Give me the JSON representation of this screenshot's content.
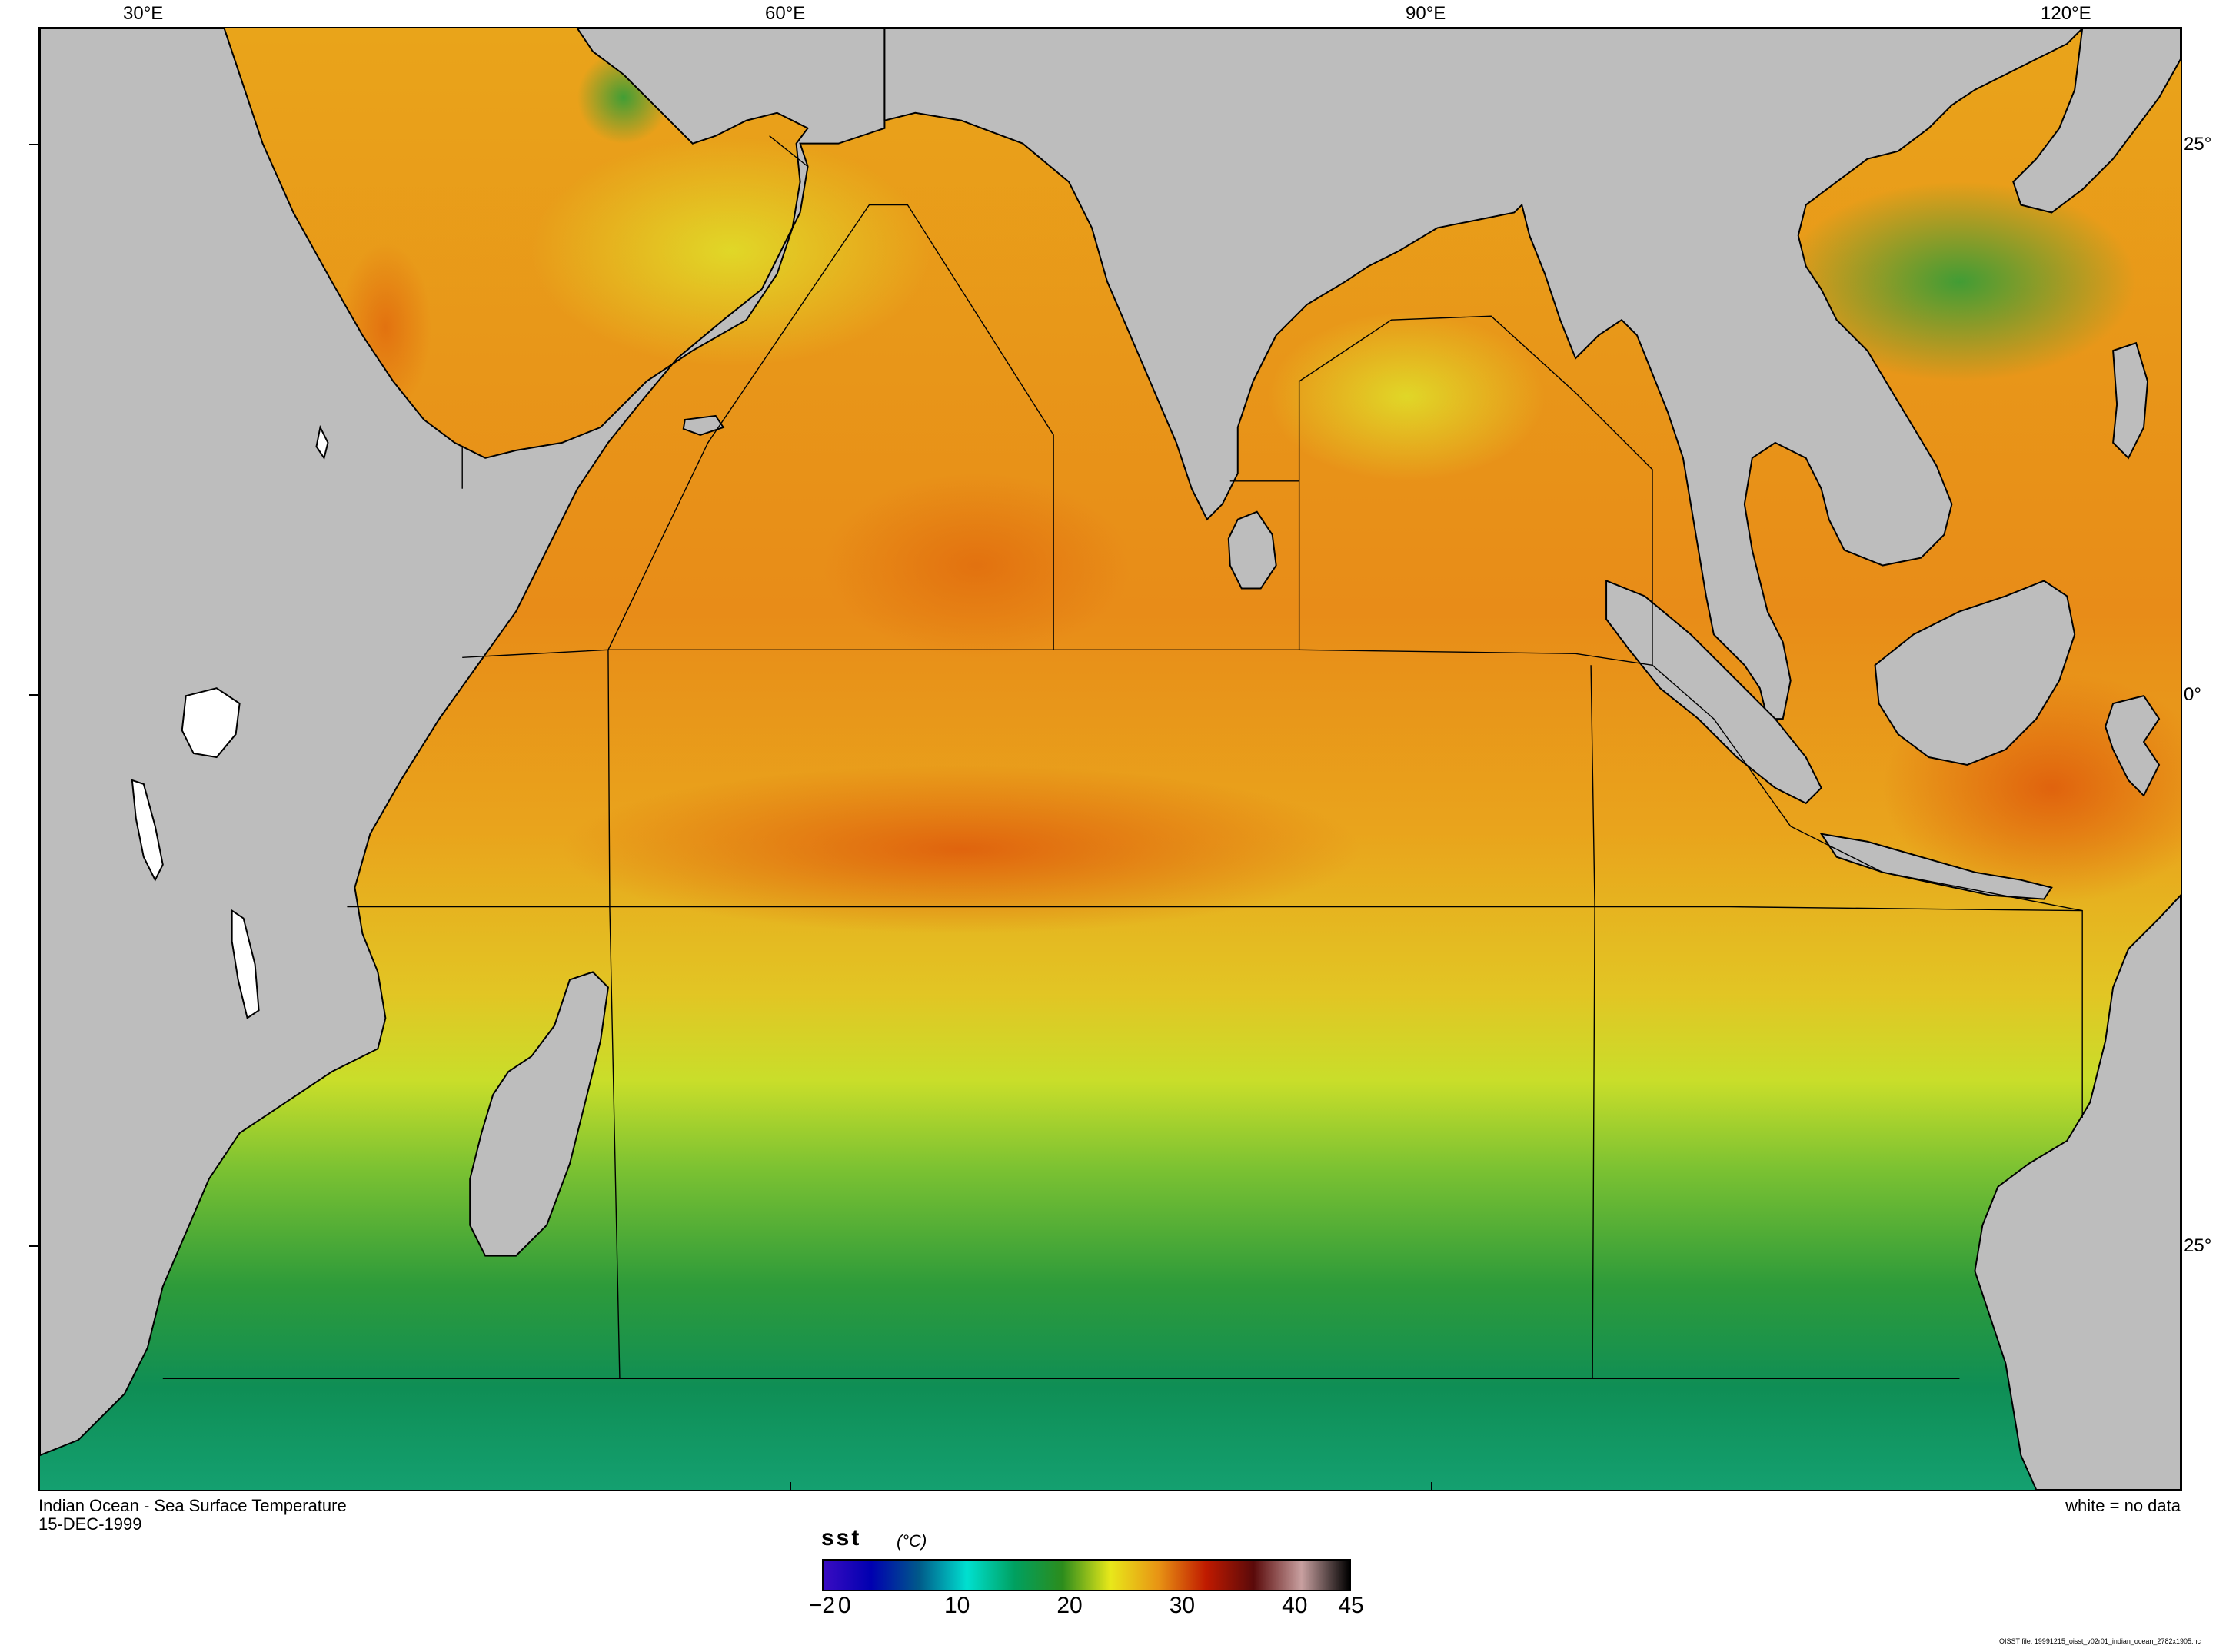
{
  "map": {
    "title": "Indian Ocean - Sea Surface Temperature",
    "date": "15-DEC-1999",
    "nodata_note": "white = no data",
    "file_label": "OISST file: 19991215_oisst_v02r01_indian_ocean_2782x1905.nc",
    "lon_labels": [
      "30°E",
      "60°E",
      "90°E",
      "120°E"
    ],
    "lat_labels": [
      "25°",
      "0°",
      "25°"
    ],
    "colors": {
      "land": "#bdbdbd",
      "nodata": "#ffffff",
      "ocean_warm": "#e88a14",
      "ocean_mid": "#e6c81a",
      "ocean_cool": "#3aa23a",
      "ocean_cold": "#0f8f60",
      "border": "#000000"
    }
  },
  "colorbar": {
    "variable": "sst",
    "units": "(°C)",
    "range": [
      -2,
      45
    ],
    "tick_labels": [
      "−2",
      "0",
      "10",
      "20",
      "30",
      "40",
      "45"
    ],
    "tick_values": [
      -2,
      0,
      10,
      20,
      30,
      40,
      45
    ],
    "stops": [
      "#3a0cc2",
      "#0000b0",
      "#005a8a",
      "#00e0d0",
      "#00a060",
      "#2c8c1c",
      "#e8e81a",
      "#e89414",
      "#c01a00",
      "#5a0a0a",
      "#c8a0a0",
      "#000000"
    ]
  }
}
